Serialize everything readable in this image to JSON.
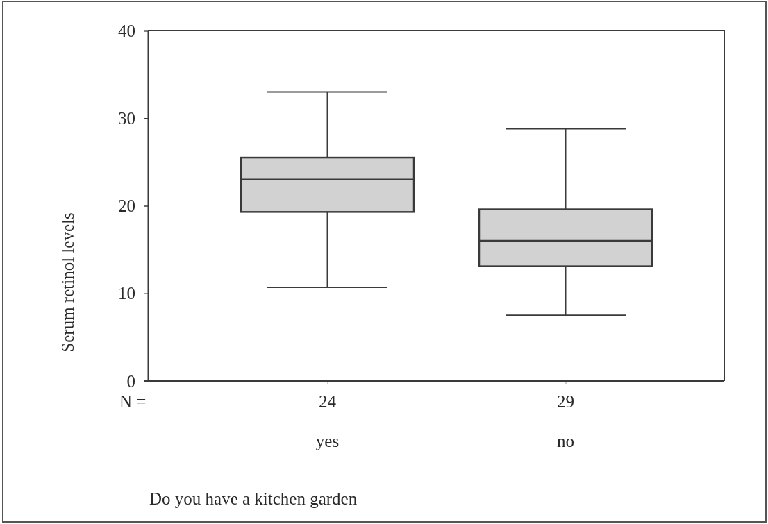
{
  "chart_data": {
    "type": "box",
    "categories": [
      "yes",
      "no"
    ],
    "xlabel": "Do you have a kitchen garden",
    "ylabel": "Serum retinol levels",
    "series": [
      {
        "color": "#d2d2d2",
        "boxes": [
          {
            "low": 10.7,
            "q1": 19.3,
            "median": 23.0,
            "q3": 25.5,
            "high": 33.0
          },
          {
            "low": 7.5,
            "q1": 13.1,
            "median": 16.0,
            "q3": 19.6,
            "high": 28.8
          }
        ]
      }
    ],
    "ylim": [
      0,
      40
    ],
    "yticks": [
      0,
      10,
      20,
      30,
      40
    ],
    "annotations": [
      "N =",
      {
        "text": "24",
        "x": "yes"
      },
      {
        "text": "29",
        "x": "no"
      }
    ]
  }
}
